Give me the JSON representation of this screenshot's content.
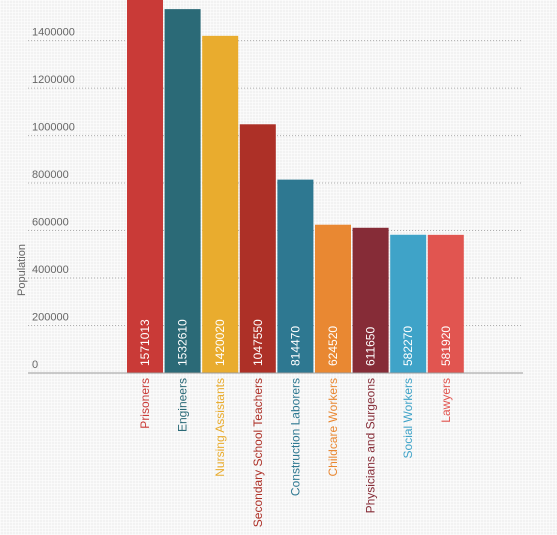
{
  "chart_data": {
    "type": "bar",
    "title": "",
    "xlabel": "",
    "ylabel": "Population",
    "ylim": [
      0,
      1571013
    ],
    "yticks": [
      0,
      200000,
      400000,
      600000,
      800000,
      1000000,
      1200000,
      1400000
    ],
    "grid": true,
    "categories": [
      "Prisoners",
      "Engineers",
      "Nursing Assistants",
      "Secondary School Teachers",
      "Construction Laborers",
      "Childcare Workers",
      "Physicians and Surgeons",
      "Social Workers",
      "Lawyers"
    ],
    "values": [
      1571013,
      1532610,
      1420020,
      1047550,
      814470,
      624520,
      611650,
      582270,
      581920
    ],
    "colors": [
      "#c93a37",
      "#2b6a77",
      "#e9ac2e",
      "#ad3027",
      "#2e7891",
      "#e98832",
      "#862c37",
      "#3fa3c8",
      "#e15550"
    ]
  }
}
